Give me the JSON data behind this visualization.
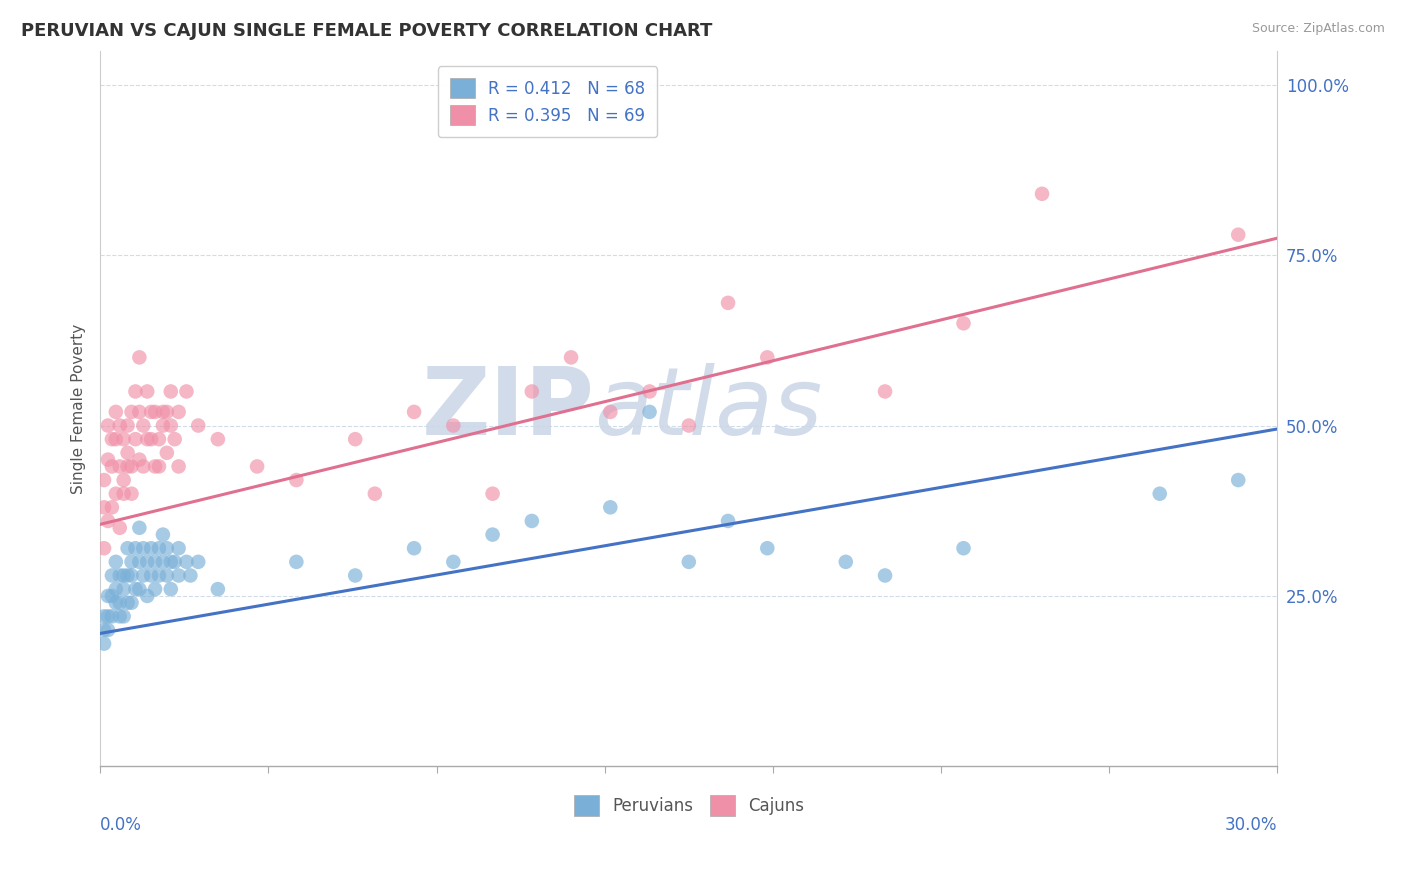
{
  "title": "PERUVIAN VS CAJUN SINGLE FEMALE POVERTY CORRELATION CHART",
  "source_text": "Source: ZipAtlas.com",
  "ylabel_ticks": [
    "25.0%",
    "50.0%",
    "75.0%",
    "100.0%"
  ],
  "ylabel_label": "Single Female Poverty",
  "legend_items": [
    {
      "label": "R = 0.412   N = 68",
      "color": "#a8c4e0"
    },
    {
      "label": "R = 0.395   N = 69",
      "color": "#f4b8c8"
    }
  ],
  "legend_bottom": [
    "Peruvians",
    "Cajuns"
  ],
  "peruvian_color": "#7ab0d8",
  "cajun_color": "#f090a8",
  "peruvian_line_color": "#4472c4",
  "cajun_line_color": "#e07090",
  "watermark_color": "#ccd8e8",
  "background_color": "#ffffff",
  "grid_color": "#d0dce8",
  "xlim": [
    0.0,
    0.3
  ],
  "ylim": [
    0.0,
    1.05
  ],
  "peruvian_scatter": [
    [
      0.001,
      0.22
    ],
    [
      0.001,
      0.2
    ],
    [
      0.001,
      0.18
    ],
    [
      0.002,
      0.25
    ],
    [
      0.002,
      0.2
    ],
    [
      0.002,
      0.22
    ],
    [
      0.003,
      0.28
    ],
    [
      0.003,
      0.22
    ],
    [
      0.003,
      0.25
    ],
    [
      0.004,
      0.3
    ],
    [
      0.004,
      0.26
    ],
    [
      0.004,
      0.24
    ],
    [
      0.005,
      0.24
    ],
    [
      0.005,
      0.22
    ],
    [
      0.005,
      0.28
    ],
    [
      0.006,
      0.28
    ],
    [
      0.006,
      0.22
    ],
    [
      0.006,
      0.26
    ],
    [
      0.007,
      0.32
    ],
    [
      0.007,
      0.28
    ],
    [
      0.007,
      0.24
    ],
    [
      0.008,
      0.28
    ],
    [
      0.008,
      0.24
    ],
    [
      0.008,
      0.3
    ],
    [
      0.009,
      0.32
    ],
    [
      0.009,
      0.26
    ],
    [
      0.01,
      0.3
    ],
    [
      0.01,
      0.35
    ],
    [
      0.01,
      0.26
    ],
    [
      0.011,
      0.28
    ],
    [
      0.011,
      0.32
    ],
    [
      0.012,
      0.3
    ],
    [
      0.012,
      0.25
    ],
    [
      0.013,
      0.28
    ],
    [
      0.013,
      0.32
    ],
    [
      0.014,
      0.3
    ],
    [
      0.014,
      0.26
    ],
    [
      0.015,
      0.32
    ],
    [
      0.015,
      0.28
    ],
    [
      0.016,
      0.3
    ],
    [
      0.016,
      0.34
    ],
    [
      0.017,
      0.28
    ],
    [
      0.017,
      0.32
    ],
    [
      0.018,
      0.3
    ],
    [
      0.018,
      0.26
    ],
    [
      0.019,
      0.3
    ],
    [
      0.02,
      0.32
    ],
    [
      0.02,
      0.28
    ],
    [
      0.022,
      0.3
    ],
    [
      0.023,
      0.28
    ],
    [
      0.025,
      0.3
    ],
    [
      0.03,
      0.26
    ],
    [
      0.05,
      0.3
    ],
    [
      0.065,
      0.28
    ],
    [
      0.08,
      0.32
    ],
    [
      0.09,
      0.3
    ],
    [
      0.1,
      0.34
    ],
    [
      0.11,
      0.36
    ],
    [
      0.13,
      0.38
    ],
    [
      0.14,
      0.52
    ],
    [
      0.15,
      0.3
    ],
    [
      0.16,
      0.36
    ],
    [
      0.17,
      0.32
    ],
    [
      0.19,
      0.3
    ],
    [
      0.2,
      0.28
    ],
    [
      0.22,
      0.32
    ],
    [
      0.27,
      0.4
    ],
    [
      0.29,
      0.42
    ]
  ],
  "cajun_scatter": [
    [
      0.001,
      0.32
    ],
    [
      0.001,
      0.38
    ],
    [
      0.001,
      0.42
    ],
    [
      0.002,
      0.36
    ],
    [
      0.002,
      0.45
    ],
    [
      0.002,
      0.5
    ],
    [
      0.003,
      0.38
    ],
    [
      0.003,
      0.44
    ],
    [
      0.003,
      0.48
    ],
    [
      0.004,
      0.4
    ],
    [
      0.004,
      0.48
    ],
    [
      0.004,
      0.52
    ],
    [
      0.005,
      0.35
    ],
    [
      0.005,
      0.44
    ],
    [
      0.005,
      0.5
    ],
    [
      0.006,
      0.4
    ],
    [
      0.006,
      0.48
    ],
    [
      0.006,
      0.42
    ],
    [
      0.007,
      0.44
    ],
    [
      0.007,
      0.5
    ],
    [
      0.007,
      0.46
    ],
    [
      0.008,
      0.4
    ],
    [
      0.008,
      0.52
    ],
    [
      0.008,
      0.44
    ],
    [
      0.009,
      0.55
    ],
    [
      0.009,
      0.48
    ],
    [
      0.01,
      0.52
    ],
    [
      0.01,
      0.45
    ],
    [
      0.01,
      0.6
    ],
    [
      0.011,
      0.5
    ],
    [
      0.011,
      0.44
    ],
    [
      0.012,
      0.48
    ],
    [
      0.012,
      0.55
    ],
    [
      0.013,
      0.52
    ],
    [
      0.013,
      0.48
    ],
    [
      0.014,
      0.44
    ],
    [
      0.014,
      0.52
    ],
    [
      0.015,
      0.48
    ],
    [
      0.015,
      0.44
    ],
    [
      0.016,
      0.52
    ],
    [
      0.016,
      0.5
    ],
    [
      0.017,
      0.46
    ],
    [
      0.017,
      0.52
    ],
    [
      0.018,
      0.5
    ],
    [
      0.018,
      0.55
    ],
    [
      0.019,
      0.48
    ],
    [
      0.02,
      0.52
    ],
    [
      0.02,
      0.44
    ],
    [
      0.022,
      0.55
    ],
    [
      0.025,
      0.5
    ],
    [
      0.03,
      0.48
    ],
    [
      0.04,
      0.44
    ],
    [
      0.05,
      0.42
    ],
    [
      0.065,
      0.48
    ],
    [
      0.07,
      0.4
    ],
    [
      0.08,
      0.52
    ],
    [
      0.09,
      0.5
    ],
    [
      0.1,
      0.4
    ],
    [
      0.11,
      0.55
    ],
    [
      0.12,
      0.6
    ],
    [
      0.13,
      0.52
    ],
    [
      0.14,
      0.55
    ],
    [
      0.15,
      0.5
    ],
    [
      0.16,
      0.68
    ],
    [
      0.17,
      0.6
    ],
    [
      0.2,
      0.55
    ],
    [
      0.22,
      0.65
    ],
    [
      0.24,
      0.84
    ],
    [
      0.29,
      0.78
    ]
  ]
}
